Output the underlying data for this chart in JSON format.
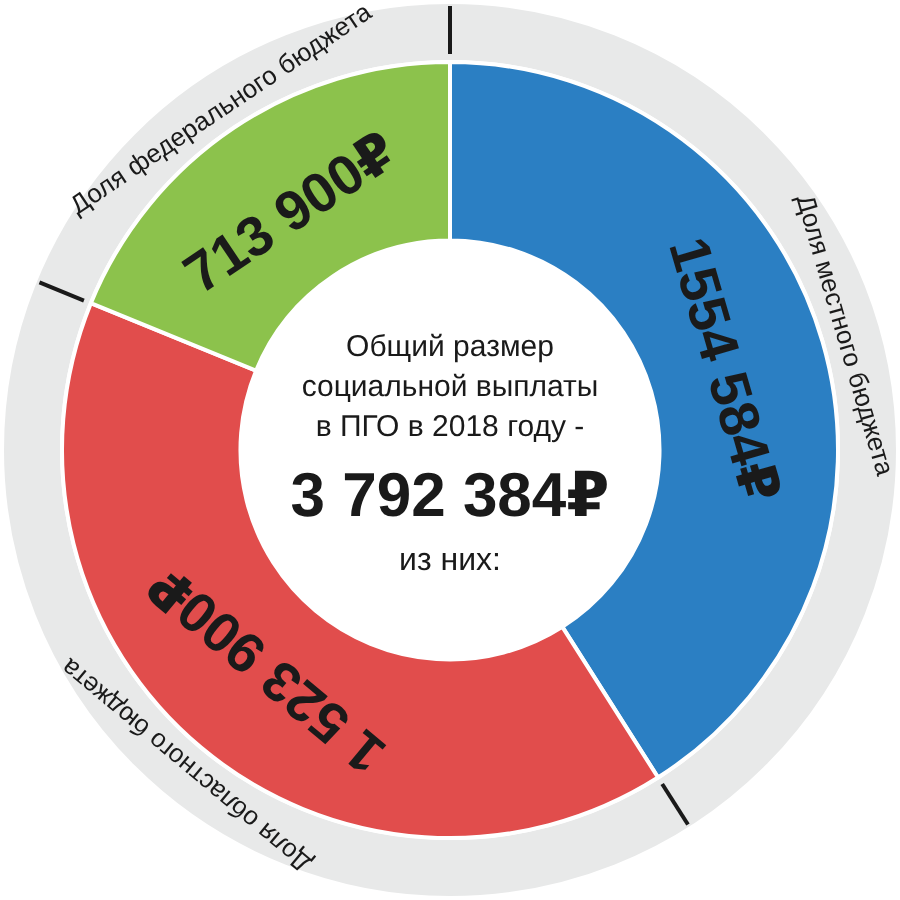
{
  "chart_data": {
    "type": "donut",
    "title": "Общий размер социальной выплаты в ПГО в 2018 году -",
    "annotations": [
      "3 792 384₽",
      "из них:"
    ],
    "categories": [
      "Доля местного бюджета",
      "Доля областного бюджета",
      "Доля федерального бюджета"
    ],
    "values": [
      1554584,
      1523900,
      713900
    ],
    "colors": [
      "#2b7fc3",
      "#e14d4c",
      "#8cc24c"
    ],
    "value_labels": [
      "1554 584₽",
      "1 523 900₽",
      "713 900₽"
    ]
  }
}
